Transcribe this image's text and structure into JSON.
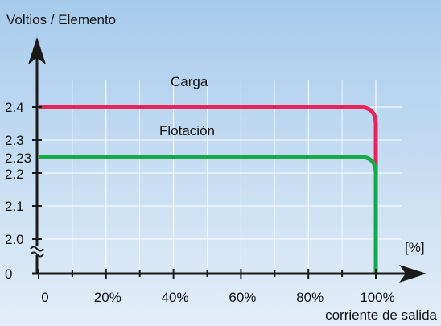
{
  "chart_data": {
    "type": "line",
    "ylabel": "Voltios / Elemento",
    "xlabel": "corriente de salida",
    "x_unit": "[%]",
    "x_ticks": [
      "0",
      "20%",
      "40%",
      "60%",
      "80%",
      "100%"
    ],
    "y_ticks": [
      {
        "label": "0",
        "value": 0
      },
      {
        "label": "2.0",
        "value": 2.0
      },
      {
        "label": "2.1",
        "value": 2.1
      },
      {
        "label": "2.2",
        "value": 2.2
      },
      {
        "label": "2.23",
        "value": 2.23
      },
      {
        "label": "2.3",
        "value": 2.3
      },
      {
        "label": "2.4",
        "value": 2.4
      }
    ],
    "series": [
      {
        "name": "Carga",
        "color": "#e8245c",
        "x": [
          0,
          95,
          100,
          100
        ],
        "y": [
          2.4,
          2.4,
          2.35,
          0
        ]
      },
      {
        "name": "Flotación",
        "color": "#17a84a",
        "x": [
          0,
          95,
          100,
          100
        ],
        "y": [
          2.25,
          2.25,
          2.2,
          0
        ]
      }
    ],
    "grid": true,
    "axis_break": true
  },
  "colors": {
    "background_top": "#a8cbec",
    "background_bottom": "#e3eef9",
    "axis": "#1a1a1a",
    "grid": "#ffffff"
  }
}
